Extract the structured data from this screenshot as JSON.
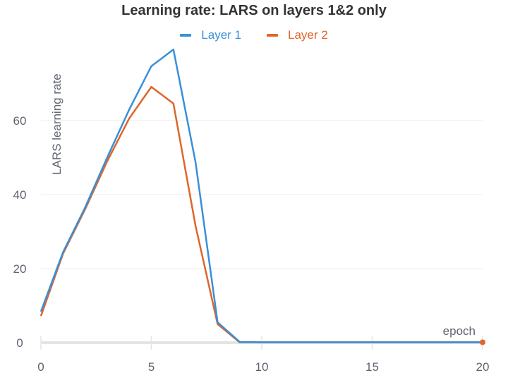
{
  "chart_data": {
    "type": "line",
    "title": "Learning rate: LARS on layers 1&2 only",
    "xlabel": "epoch",
    "ylabel": "LARS learning rate",
    "xlim": [
      0,
      20
    ],
    "ylim": [
      0,
      80
    ],
    "x_ticks": [
      0,
      5,
      10,
      15,
      20
    ],
    "y_ticks": [
      0,
      20,
      40,
      60
    ],
    "grid": true,
    "legend_position": "top",
    "x": [
      0,
      1,
      2,
      3,
      4,
      5,
      6,
      7,
      8,
      9,
      10,
      11,
      12,
      13,
      14,
      15,
      16,
      17,
      18,
      19,
      20
    ],
    "series": [
      {
        "name": "Layer 1",
        "color": "#3a8fd8",
        "values": [
          8.4,
          24.4,
          36.5,
          50.0,
          63.0,
          74.7,
          79.2,
          48.8,
          5.5,
          0.2,
          0.1,
          0.1,
          0.1,
          0.1,
          0.1,
          0.1,
          0.1,
          0.1,
          0.1,
          0.1,
          0.1
        ]
      },
      {
        "name": "Layer 2",
        "color": "#e0652a",
        "values": [
          7.2,
          24.0,
          36.0,
          49.0,
          60.6,
          69.1,
          64.6,
          31.6,
          5.0,
          0.1,
          0.1,
          0.1,
          0.1,
          0.1,
          0.1,
          0.1,
          0.1,
          0.1,
          0.1,
          0.1,
          0.1
        ]
      }
    ]
  },
  "legend": {
    "items": [
      {
        "label": "Layer 1",
        "color": "#3a8fd8"
      },
      {
        "label": "Layer 2",
        "color": "#e0652a"
      }
    ]
  }
}
